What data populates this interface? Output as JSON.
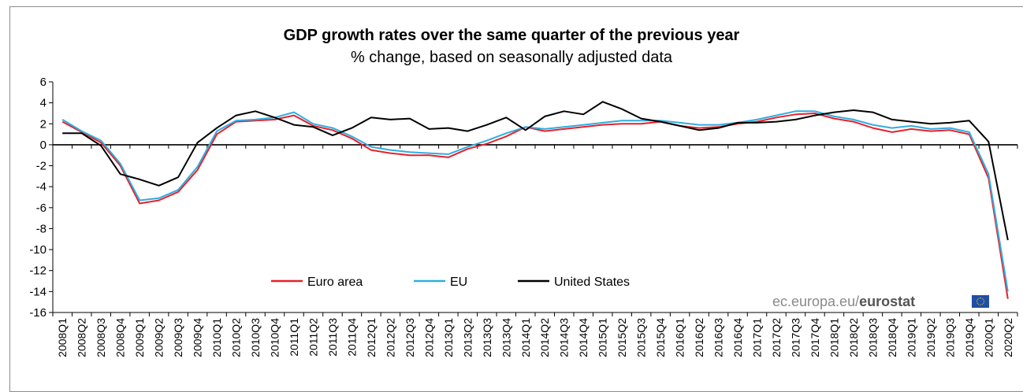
{
  "chart_data": {
    "type": "line",
    "title": "GDP growth rates over the same quarter of the previous year",
    "subtitle": "% change, based on seasonally adjusted data",
    "ylim": [
      -16,
      6
    ],
    "yticks": [
      6,
      4,
      2,
      0,
      -2,
      -4,
      -6,
      -8,
      -10,
      -12,
      -14,
      -16
    ],
    "grid": false,
    "legend_position": "bottom-center",
    "x": [
      "2008Q1",
      "2008Q2",
      "2008Q3",
      "2008Q4",
      "2009Q1",
      "2009Q2",
      "2009Q3",
      "2009Q4",
      "2010Q1",
      "2010Q2",
      "2010Q3",
      "2010Q4",
      "2011Q1",
      "2011Q2",
      "2011Q3",
      "2011Q4",
      "2012Q1",
      "2012Q2",
      "2012Q3",
      "2012Q4",
      "2013Q1",
      "2013Q2",
      "2013Q3",
      "2013Q4",
      "2014Q1",
      "2014Q2",
      "2014Q3",
      "2014Q4",
      "2015Q1",
      "2015Q2",
      "2015Q3",
      "2015Q4",
      "2016Q1",
      "2016Q2",
      "2016Q3",
      "2016Q4",
      "2017Q1",
      "2017Q2",
      "2017Q3",
      "2017Q4",
      "2018Q1",
      "2018Q2",
      "2018Q3",
      "2018Q4",
      "2019Q1",
      "2019Q2",
      "2019Q3",
      "2019Q4",
      "2020Q1",
      "2020Q2"
    ],
    "series": [
      {
        "name": "Euro area",
        "color": "#e8212b",
        "values": [
          2.2,
          1.2,
          0.2,
          -2.0,
          -5.6,
          -5.3,
          -4.5,
          -2.4,
          1.0,
          2.2,
          2.3,
          2.4,
          2.8,
          1.8,
          1.4,
          0.6,
          -0.5,
          -0.8,
          -1.0,
          -1.0,
          -1.2,
          -0.4,
          0.1,
          0.8,
          1.7,
          1.3,
          1.5,
          1.7,
          1.9,
          2.0,
          2.0,
          2.2,
          1.8,
          1.6,
          1.7,
          2.0,
          2.2,
          2.6,
          2.9,
          3.0,
          2.5,
          2.2,
          1.6,
          1.2,
          1.5,
          1.3,
          1.4,
          1.0,
          -3.2,
          -14.7
        ]
      },
      {
        "name": "EU",
        "color": "#2eaee1",
        "values": [
          2.4,
          1.3,
          0.4,
          -1.8,
          -5.3,
          -5.1,
          -4.3,
          -2.1,
          1.3,
          2.3,
          2.4,
          2.6,
          3.1,
          2.0,
          1.6,
          0.8,
          -0.2,
          -0.5,
          -0.7,
          -0.8,
          -0.9,
          -0.2,
          0.4,
          1.1,
          1.7,
          1.5,
          1.7,
          1.9,
          2.1,
          2.3,
          2.3,
          2.3,
          2.1,
          1.9,
          1.9,
          2.1,
          2.4,
          2.8,
          3.2,
          3.2,
          2.7,
          2.4,
          1.9,
          1.6,
          1.8,
          1.5,
          1.6,
          1.2,
          -2.8,
          -14.0
        ]
      },
      {
        "name": "United States",
        "color": "#000000",
        "values": [
          1.1,
          1.1,
          -0.1,
          -2.8,
          -3.3,
          -3.9,
          -3.1,
          0.2,
          1.6,
          2.8,
          3.2,
          2.6,
          1.9,
          1.7,
          0.9,
          1.6,
          2.6,
          2.4,
          2.5,
          1.5,
          1.6,
          1.3,
          1.9,
          2.6,
          1.4,
          2.7,
          3.2,
          2.9,
          4.1,
          3.4,
          2.5,
          2.2,
          1.8,
          1.4,
          1.6,
          2.1,
          2.1,
          2.2,
          2.4,
          2.8,
          3.1,
          3.3,
          3.1,
          2.4,
          2.2,
          2.0,
          2.1,
          2.3,
          0.3,
          -9.1
        ]
      }
    ]
  },
  "source": {
    "prefix": "ec.europa.eu/",
    "brand": "eurostat"
  }
}
